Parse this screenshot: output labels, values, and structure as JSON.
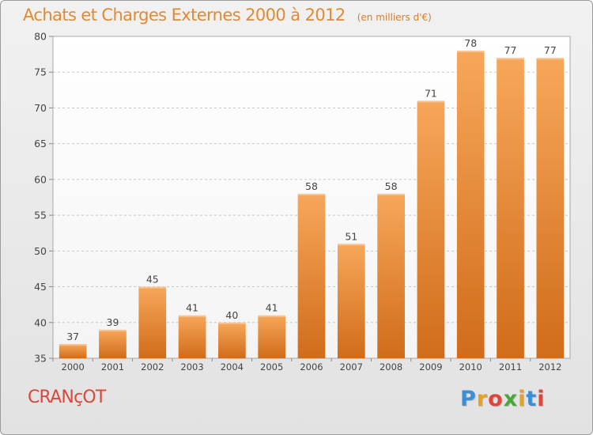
{
  "header": {
    "title": "Achats et Charges Externes 2000 à 2012",
    "unit": "(en milliers d'€)"
  },
  "footer": {
    "commune": "CRANçOT",
    "brand": "Proxiti",
    "brand_colors": [
      "#3a8fd6",
      "#e8a21d",
      "#e0453b",
      "#4aa63c",
      "#e8a21d",
      "#3a8fd6",
      "#e0453b"
    ]
  },
  "colors": {
    "bar_top": "#f7a75a",
    "bar_bottom": "#d06c1a",
    "title": "#e08a32",
    "commune": "#d9483a",
    "grid": "#c8c8c8"
  },
  "chart_data": {
    "type": "bar",
    "categories": [
      "2000",
      "2001",
      "2002",
      "2003",
      "2004",
      "2005",
      "2006",
      "2007",
      "2008",
      "2009",
      "2010",
      "2011",
      "2012"
    ],
    "values": [
      37,
      39,
      45,
      41,
      40,
      41,
      58,
      51,
      58,
      71,
      78,
      77,
      77
    ],
    "data_labels": [
      "37",
      "39",
      "45",
      "41",
      "40",
      "41",
      "58",
      "51",
      "58",
      "71",
      "78",
      "77",
      "77"
    ],
    "title": "Achats et Charges Externes 2000 à 2012",
    "unit": "(en milliers d'€)",
    "ylim": [
      35,
      80
    ],
    "yticks": [
      35,
      40,
      45,
      50,
      55,
      60,
      65,
      70,
      75,
      80
    ],
    "ytick_labels": [
      "35",
      "40",
      "45",
      "50",
      "55",
      "60",
      "65",
      "70",
      "75",
      "80"
    ],
    "grid": true
  }
}
